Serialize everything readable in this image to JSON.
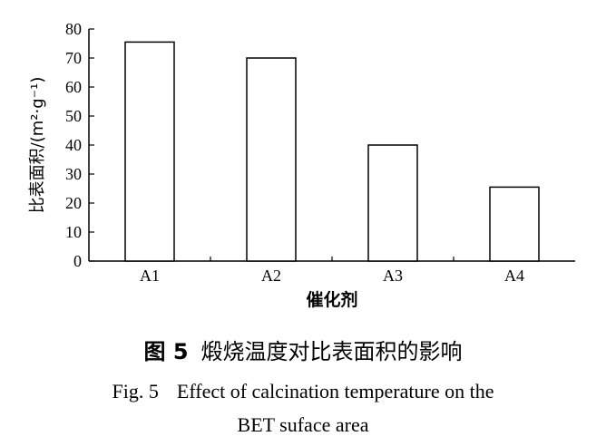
{
  "chart_data": {
    "type": "bar",
    "categories": [
      "A1",
      "A2",
      "A3",
      "A4"
    ],
    "values": [
      75.5,
      70,
      40,
      25.5
    ],
    "xlabel": "催化剂",
    "ylabel": "比表面积/(m²·g⁻¹)",
    "ylim": [
      0,
      80
    ],
    "yticks": [
      0,
      10,
      20,
      30,
      40,
      50,
      60,
      70,
      80
    ],
    "grid": false,
    "bar_fill": "#ffffff",
    "bar_stroke": "#000000"
  },
  "caption": {
    "cn_number": "图 5",
    "cn_title": "煅烧温度对比表面积的影响",
    "en_number": "Fig. 5",
    "en_line1": "Effect of calcination temperature on the",
    "en_line2": "BET suface area"
  }
}
